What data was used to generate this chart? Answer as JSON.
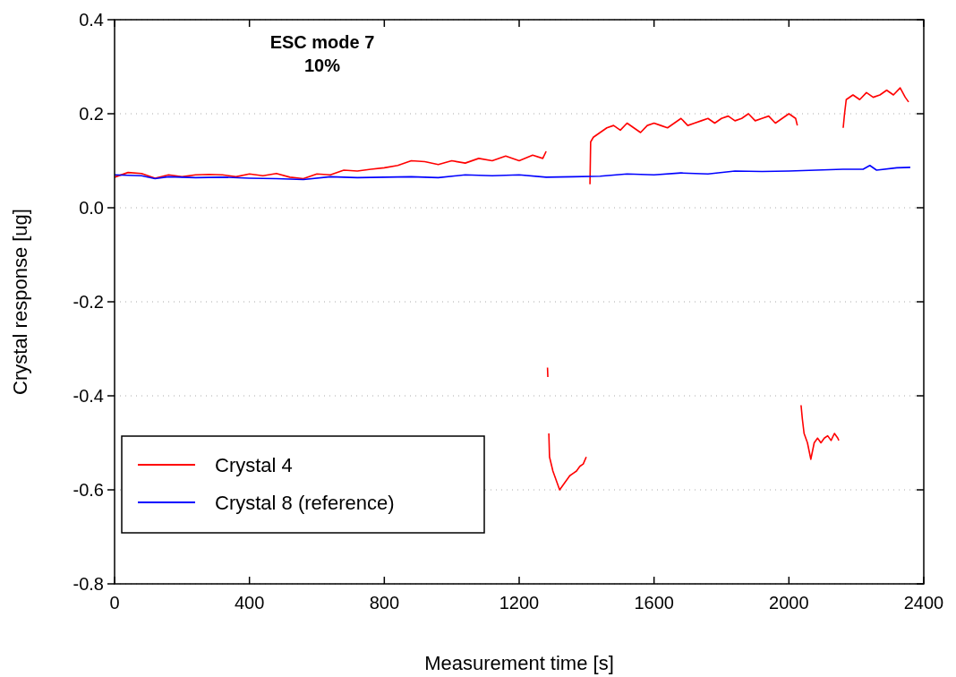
{
  "chart_data": {
    "type": "line",
    "title": "ESC mode 7",
    "subtitle": "10%",
    "xlabel": "Measurement time [s]",
    "ylabel": "Crystal response [ug]",
    "xlim": [
      0,
      2400
    ],
    "xticks": [
      0,
      400,
      800,
      1200,
      1600,
      2000,
      2400
    ],
    "ylim": [
      -0.8,
      0.4
    ],
    "yticks": [
      {
        "value": -0.8,
        "label": "-0.8"
      },
      {
        "value": -0.6,
        "label": "-0.6"
      },
      {
        "value": -0.4,
        "label": "-0.4"
      },
      {
        "value": -0.2,
        "label": "-0.2"
      },
      {
        "value": 0,
        "label": "0.0"
      },
      {
        "value": 0.2,
        "label": "0.2"
      },
      {
        "value": 0.4,
        "label": "0.4"
      }
    ],
    "grid": "y",
    "legend": "bottom left",
    "marker": "none",
    "line_style": "solid",
    "series": [
      {
        "name": "Crystal 4",
        "color": "#ff0000",
        "x": [
          0,
          40,
          80,
          120,
          160,
          200,
          240,
          280,
          320,
          360,
          400,
          440,
          480,
          520,
          560,
          600,
          640,
          680,
          720,
          760,
          800,
          840,
          880,
          920,
          960,
          1000,
          1040,
          1080,
          1120,
          1160,
          1200,
          1240,
          1270,
          1280,
          1282,
          1284,
          1285,
          1286,
          1288,
          1290,
          1300,
          1310,
          1320,
          1330,
          1340,
          1350,
          1360,
          1370,
          1380,
          1390,
          1399,
          1405,
          1410,
          1412,
          1420,
          1440,
          1460,
          1480,
          1500,
          1520,
          1540,
          1560,
          1580,
          1600,
          1620,
          1640,
          1660,
          1680,
          1700,
          1720,
          1740,
          1760,
          1780,
          1800,
          1820,
          1840,
          1860,
          1880,
          1900,
          1920,
          1940,
          1960,
          1980,
          2000,
          2020,
          2025,
          2030,
          2036,
          2040,
          2045,
          2055,
          2065,
          2075,
          2085,
          2095,
          2105,
          2115,
          2125,
          2135,
          2145,
          2148,
          2155,
          2161,
          2165,
          2170,
          2190,
          2210,
          2230,
          2250,
          2270,
          2290,
          2310,
          2330,
          2345,
          2355
        ],
        "values": [
          0.065,
          0.075,
          0.073,
          0.063,
          0.07,
          0.066,
          0.07,
          0.071,
          0.07,
          0.066,
          0.072,
          0.068,
          0.073,
          0.065,
          0.062,
          0.072,
          0.07,
          0.08,
          0.078,
          0.082,
          0.085,
          0.09,
          0.1,
          0.098,
          0.092,
          0.1,
          0.095,
          0.105,
          0.1,
          0.11,
          0.1,
          0.112,
          0.105,
          0.12,
          null,
          -0.34,
          -0.36,
          null,
          -0.48,
          -0.53,
          -0.56,
          -0.58,
          -0.6,
          -0.59,
          -0.58,
          -0.57,
          -0.565,
          -0.56,
          -0.55,
          -0.545,
          -0.53,
          null,
          0.05,
          0.14,
          0.15,
          0.16,
          0.17,
          0.175,
          0.165,
          0.18,
          0.17,
          0.16,
          0.175,
          0.18,
          0.175,
          0.17,
          0.18,
          0.19,
          0.175,
          0.18,
          0.185,
          0.19,
          0.18,
          0.19,
          0.195,
          0.185,
          0.19,
          0.2,
          0.185,
          0.19,
          0.195,
          0.18,
          0.19,
          0.2,
          0.19,
          0.175,
          null,
          -0.42,
          -0.45,
          -0.48,
          -0.5,
          -0.535,
          -0.5,
          -0.49,
          -0.5,
          -0.49,
          -0.485,
          -0.495,
          -0.48,
          -0.49,
          -0.495,
          null,
          0.17,
          0.2,
          0.23,
          0.24,
          0.23,
          0.245,
          0.235,
          0.24,
          0.25,
          0.24,
          0.255,
          0.235,
          0.225
        ]
      },
      {
        "name": "Crystal 8 (reference)",
        "color": "#0000ff",
        "x": [
          0,
          80,
          120,
          160,
          240,
          320,
          400,
          480,
          560,
          640,
          720,
          800,
          880,
          960,
          1040,
          1120,
          1200,
          1280,
          1360,
          1440,
          1520,
          1600,
          1680,
          1760,
          1840,
          1920,
          2000,
          2080,
          2160,
          2220,
          2240,
          2260,
          2320,
          2360
        ],
        "values": [
          0.07,
          0.068,
          0.062,
          0.066,
          0.064,
          0.065,
          0.063,
          0.062,
          0.06,
          0.066,
          0.064,
          0.065,
          0.066,
          0.064,
          0.07,
          0.068,
          0.07,
          0.065,
          0.066,
          0.067,
          0.072,
          0.07,
          0.074,
          0.072,
          0.078,
          0.077,
          0.078,
          0.08,
          0.082,
          0.082,
          0.09,
          0.08,
          0.085,
          0.086
        ]
      }
    ]
  }
}
